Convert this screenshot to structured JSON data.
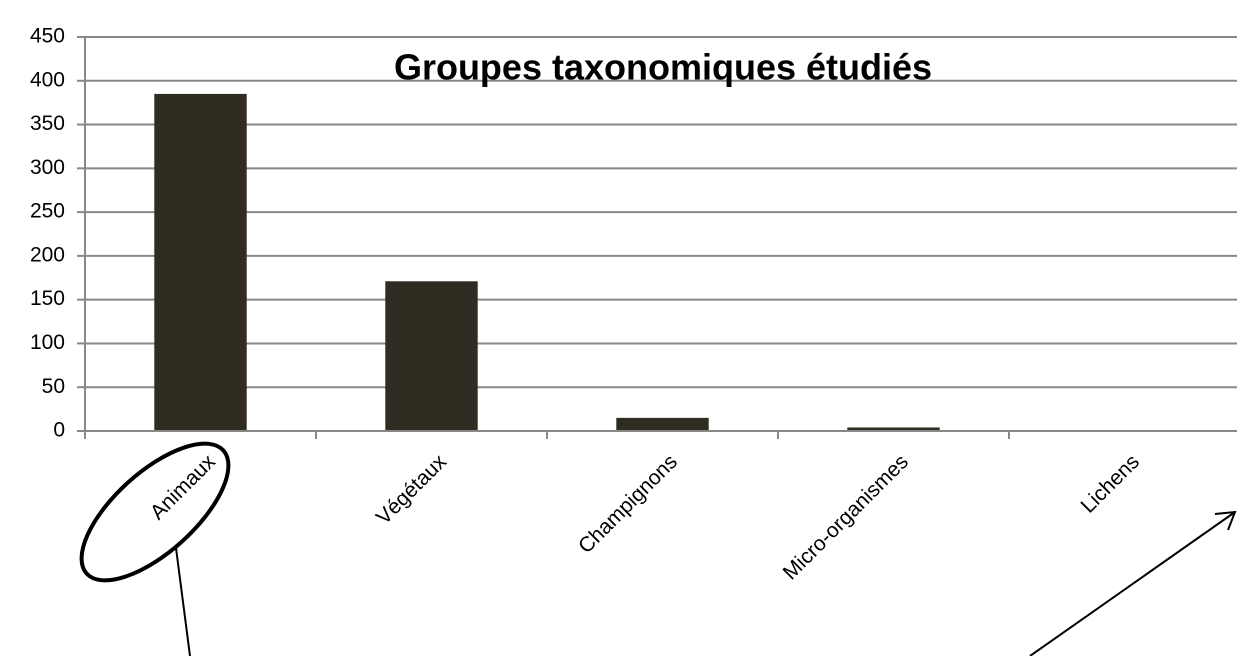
{
  "chart_data": {
    "type": "bar",
    "title": "Groupes taxonomiques étudiés",
    "categories": [
      "Animaux",
      "Végétaux",
      "Champignons",
      "Micro-organismes",
      "Lichens"
    ],
    "values": [
      385,
      171,
      15,
      4,
      1
    ],
    "color": "#312c22",
    "ylim": [
      0,
      450
    ],
    "yticks": [
      0,
      50,
      100,
      150,
      200,
      250,
      300,
      350,
      400,
      450
    ],
    "grid": true
  }
}
